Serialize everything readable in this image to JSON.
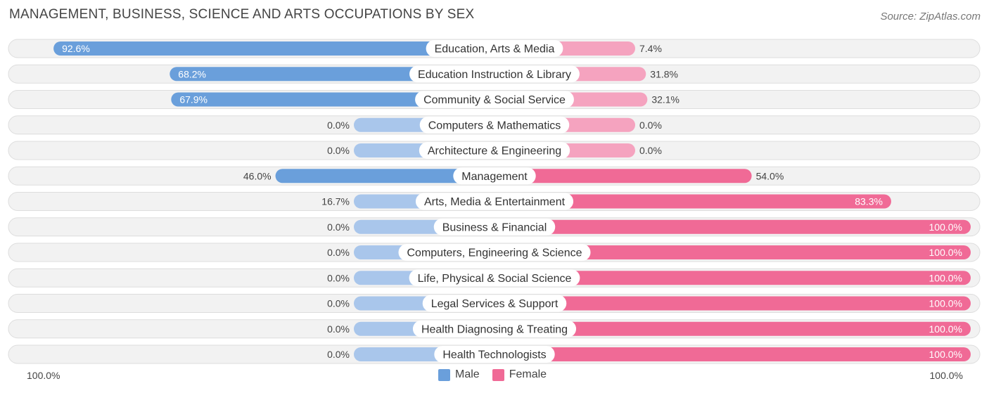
{
  "header": {
    "title": "MANAGEMENT, BUSINESS, SCIENCE AND ARTS OCCUPATIONS BY SEX",
    "source": "Source: ZipAtlas.com"
  },
  "axis": {
    "left_label": "100.0%",
    "right_label": "100.0%"
  },
  "legend": {
    "male_label": "Male",
    "female_label": "Female"
  },
  "colors": {
    "male_strong": "#6a9fdb",
    "male_light": "#a9c6eb",
    "female_strong": "#f06a96",
    "female_light": "#f5a3bf",
    "row_bg": "#f2f2f2",
    "row_border": "#dddddd"
  },
  "chart_data": {
    "type": "bar",
    "orientation": "horizontal-diverging",
    "title": "MANAGEMENT, BUSINESS, SCIENCE AND ARTS OCCUPATIONS BY SEX",
    "categories": [
      "Education, Arts & Media",
      "Education Instruction & Library",
      "Community & Social Service",
      "Computers & Mathematics",
      "Architecture & Engineering",
      "Management",
      "Arts, Media & Entertainment",
      "Business & Financial",
      "Computers, Engineering & Science",
      "Life, Physical & Social Science",
      "Legal Services & Support",
      "Health Diagnosing & Treating",
      "Health Technologists"
    ],
    "series": [
      {
        "name": "Male",
        "values": [
          92.6,
          68.2,
          67.9,
          0.0,
          0.0,
          46.0,
          16.7,
          0.0,
          0.0,
          0.0,
          0.0,
          0.0,
          0.0
        ]
      },
      {
        "name": "Female",
        "values": [
          7.4,
          31.8,
          32.1,
          0.0,
          0.0,
          54.0,
          83.3,
          100.0,
          100.0,
          100.0,
          100.0,
          100.0,
          100.0
        ]
      }
    ],
    "value_labels": {
      "male": [
        "92.6%",
        "68.2%",
        "67.9%",
        "0.0%",
        "0.0%",
        "46.0%",
        "16.7%",
        "0.0%",
        "0.0%",
        "0.0%",
        "0.0%",
        "0.0%",
        "0.0%"
      ],
      "female": [
        "7.4%",
        "31.8%",
        "32.1%",
        "0.0%",
        "0.0%",
        "54.0%",
        "83.3%",
        "100.0%",
        "100.0%",
        "100.0%",
        "100.0%",
        "100.0%",
        "100.0%"
      ]
    },
    "xlim": [
      -100,
      100
    ],
    "legend_position": "bottom-center",
    "grid": false
  }
}
